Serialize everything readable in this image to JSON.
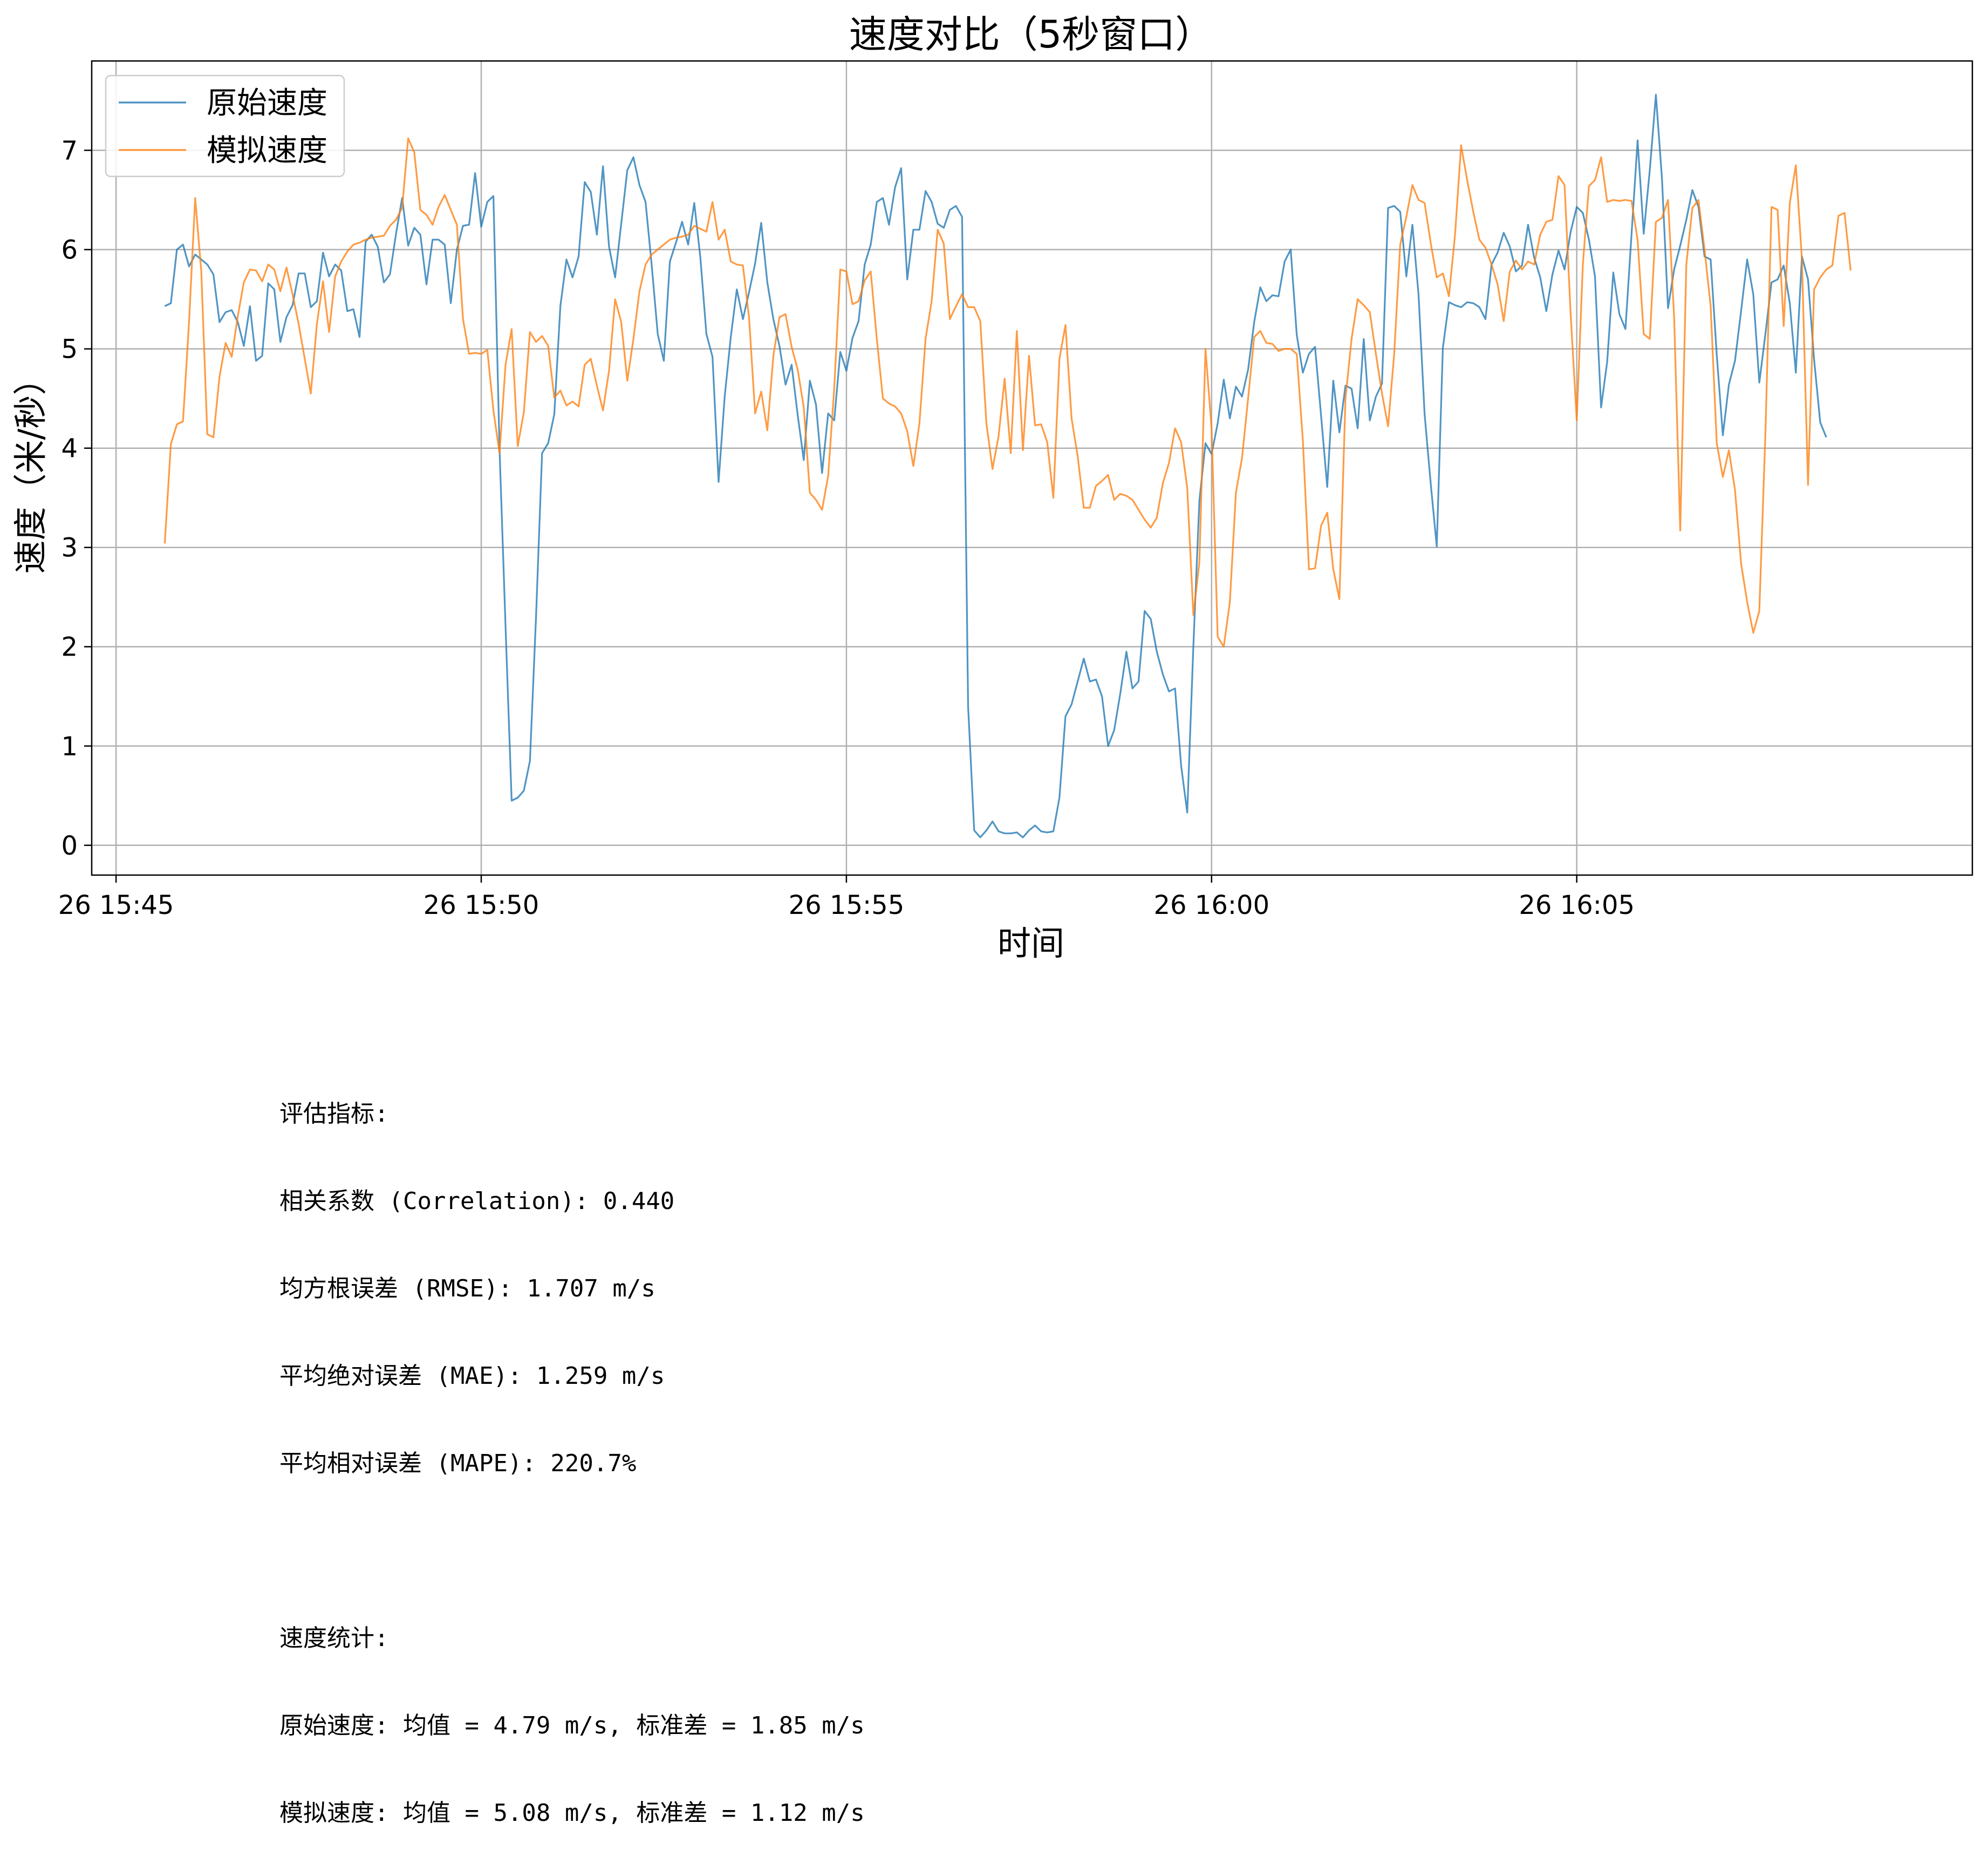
{
  "chart_data": {
    "type": "line",
    "title": "速度对比（5秒窗口）",
    "xlabel": "时间",
    "ylabel": "速度（米/秒）",
    "x_axis": {
      "scale": "time",
      "start": "26 15:45:40",
      "step_seconds": 5,
      "ticks": [
        "26 15:45",
        "26 15:50",
        "26 15:55",
        "26 16:00",
        "26 16:05"
      ],
      "xlim": [
        "26 15:44:40",
        "26 16:10:25"
      ]
    },
    "y_axis": {
      "ylim": [
        -0.3,
        7.9
      ],
      "ticks": [
        0,
        1,
        2,
        3,
        4,
        5,
        6,
        7
      ]
    },
    "grid": true,
    "legend": "top-left",
    "colors": {
      "原始速度": "#1f77b4",
      "模拟速度": "#ff7f0e"
    },
    "series": [
      {
        "name": "原始速度",
        "values": [
          5.43,
          5.46,
          6.0,
          6.05,
          5.83,
          5.95,
          5.9,
          5.85,
          5.75,
          5.27,
          5.37,
          5.39,
          5.27,
          5.03,
          5.43,
          4.88,
          4.93,
          5.66,
          5.6,
          5.07,
          5.32,
          5.44,
          5.76,
          5.76,
          5.42,
          5.48,
          5.97,
          5.73,
          5.85,
          5.79,
          5.38,
          5.4,
          5.12,
          6.08,
          6.15,
          6.03,
          5.67,
          5.75,
          6.16,
          6.52,
          6.04,
          6.22,
          6.15,
          5.65,
          6.1,
          6.1,
          6.05,
          5.46,
          6.0,
          6.24,
          6.25,
          6.77,
          6.23,
          6.48,
          6.54,
          4.0,
          2.2,
          0.45,
          0.48,
          0.55,
          0.85,
          2.3,
          3.95,
          4.05,
          4.34,
          5.43,
          5.9,
          5.72,
          5.93,
          6.68,
          6.58,
          6.15,
          6.84,
          6.03,
          5.72,
          6.26,
          6.8,
          6.93,
          6.65,
          6.48,
          5.85,
          5.15,
          4.88,
          5.88,
          6.07,
          6.28,
          6.05,
          6.47,
          5.92,
          5.15,
          4.92,
          3.66,
          4.52,
          5.12,
          5.6,
          5.3,
          5.57,
          5.86,
          6.27,
          5.67,
          5.3,
          5.03,
          4.64,
          4.84,
          4.33,
          3.88,
          4.68,
          4.44,
          3.75,
          4.35,
          4.28,
          4.97,
          4.78,
          5.11,
          5.28,
          5.85,
          6.05,
          6.48,
          6.52,
          6.25,
          6.63,
          6.82,
          5.7,
          6.2,
          6.2,
          6.59,
          6.48,
          6.26,
          6.22,
          6.4,
          6.44,
          6.33,
          1.4,
          0.15,
          0.08,
          0.15,
          0.24,
          0.14,
          0.12,
          0.12,
          0.13,
          0.08,
          0.15,
          0.2,
          0.14,
          0.13,
          0.14,
          0.48,
          1.3,
          1.42,
          1.65,
          1.88,
          1.65,
          1.67,
          1.5,
          1.0,
          1.16,
          1.53,
          1.95,
          1.58,
          1.65,
          2.36,
          2.28,
          1.95,
          1.72,
          1.55,
          1.58,
          0.8,
          0.33,
          2.0,
          3.47,
          4.05,
          3.94,
          4.25,
          4.69,
          4.3,
          4.62,
          4.52,
          4.79,
          5.27,
          5.62,
          5.48,
          5.54,
          5.53,
          5.88,
          6.0,
          5.14,
          4.76,
          4.95,
          5.02,
          4.32,
          3.61,
          4.68,
          4.16,
          4.63,
          4.6,
          4.2,
          5.1,
          4.28,
          4.52,
          4.65,
          6.42,
          6.44,
          6.38,
          5.73,
          6.25,
          5.55,
          4.34,
          3.65,
          3.01,
          5.01,
          5.47,
          5.44,
          5.42,
          5.47,
          5.46,
          5.42,
          5.3,
          5.85,
          5.97,
          6.17,
          6.03,
          5.78,
          5.84,
          6.25,
          5.92,
          5.72,
          5.38,
          5.75,
          5.99,
          5.8,
          6.18,
          6.43,
          6.37,
          6.1,
          5.73,
          4.41,
          4.87,
          5.77,
          5.35,
          5.2,
          6.15,
          7.1,
          6.16,
          6.8,
          7.56,
          6.72,
          5.41,
          5.8,
          6.04,
          6.3,
          6.6,
          6.43,
          5.93,
          5.9,
          4.94,
          4.13,
          4.64,
          4.88,
          5.38,
          5.9,
          5.55,
          4.66,
          5.15,
          5.67,
          5.7,
          5.84,
          5.46,
          4.76,
          5.93,
          5.7,
          4.89,
          4.26,
          4.11
        ]
      },
      {
        "name": "模拟速度",
        "values": [
          3.04,
          4.04,
          4.24,
          4.27,
          5.28,
          6.52,
          5.78,
          4.14,
          4.11,
          4.72,
          5.06,
          4.92,
          5.33,
          5.67,
          5.8,
          5.79,
          5.68,
          5.85,
          5.8,
          5.58,
          5.82,
          5.55,
          5.25,
          4.9,
          4.55,
          5.25,
          5.68,
          5.17,
          5.73,
          5.88,
          5.98,
          6.05,
          6.07,
          6.1,
          6.12,
          6.13,
          6.14,
          6.24,
          6.3,
          6.42,
          7.12,
          6.98,
          6.4,
          6.35,
          6.25,
          6.43,
          6.55,
          6.4,
          6.25,
          5.3,
          4.95,
          4.96,
          4.95,
          4.99,
          4.38,
          3.95,
          4.84,
          5.2,
          4.02,
          4.36,
          5.17,
          5.07,
          5.13,
          5.03,
          4.51,
          4.58,
          4.43,
          4.47,
          4.42,
          4.84,
          4.9,
          4.63,
          4.38,
          4.78,
          5.5,
          5.27,
          4.68,
          5.1,
          5.58,
          5.85,
          5.95,
          6.0,
          6.05,
          6.1,
          6.12,
          6.13,
          6.15,
          6.24,
          6.21,
          6.18,
          6.48,
          6.1,
          6.2,
          5.88,
          5.85,
          5.84,
          5.32,
          4.35,
          4.57,
          4.18,
          4.93,
          5.32,
          5.35,
          5.02,
          4.79,
          4.41,
          3.55,
          3.48,
          3.38,
          3.72,
          4.6,
          5.8,
          5.78,
          5.45,
          5.48,
          5.69,
          5.78,
          5.1,
          4.5,
          4.45,
          4.42,
          4.35,
          4.17,
          3.82,
          4.25,
          5.1,
          5.48,
          6.2,
          6.06,
          5.3,
          5.43,
          5.55,
          5.42,
          5.42,
          5.28,
          4.25,
          3.79,
          4.12,
          4.7,
          3.95,
          5.18,
          3.98,
          4.93,
          4.23,
          4.24,
          4.06,
          3.5,
          4.9,
          5.24,
          4.3,
          3.92,
          3.4,
          3.4,
          3.62,
          3.67,
          3.73,
          3.48,
          3.54,
          3.52,
          3.48,
          3.38,
          3.28,
          3.2,
          3.3,
          3.65,
          3.85,
          4.2,
          4.06,
          3.6,
          2.32,
          2.85,
          5.0,
          4.2,
          2.1,
          2.0,
          2.45,
          3.55,
          3.9,
          4.5,
          5.12,
          5.18,
          5.06,
          5.05,
          4.98,
          5.0,
          5.0,
          4.95,
          4.08,
          2.78,
          2.79,
          3.22,
          3.35,
          2.78,
          2.48,
          4.5,
          5.1,
          5.5,
          5.44,
          5.37,
          4.95,
          4.55,
          4.22,
          4.95,
          6.05,
          6.33,
          6.65,
          6.5,
          6.47,
          6.07,
          5.72,
          5.76,
          5.53,
          6.15,
          7.05,
          6.7,
          6.38,
          6.1,
          6.02,
          5.85,
          5.65,
          5.28,
          5.78,
          5.89,
          5.8,
          5.88,
          5.85,
          6.15,
          6.28,
          6.3,
          6.74,
          6.65,
          5.35,
          4.28,
          5.85,
          6.64,
          6.7,
          6.93,
          6.48,
          6.5,
          6.49,
          6.5,
          6.49,
          6.1,
          5.15,
          5.1,
          6.28,
          6.32,
          6.5,
          5.32,
          3.17,
          5.85,
          6.42,
          6.5,
          6.0,
          5.43,
          4.05,
          3.71,
          3.98,
          3.58,
          2.84,
          2.45,
          2.14,
          2.36,
          4.15,
          6.43,
          6.4,
          5.23,
          6.47,
          6.85,
          5.9,
          3.63,
          5.6,
          5.72,
          5.8,
          5.84,
          6.34,
          6.37,
          5.79
        ]
      }
    ],
    "annotations": {
      "metrics_lines": [
        "评估指标:",
        "相关系数 (Correlation): 0.440",
        "均方根误差 (RMSE): 1.707 m/s",
        "平均绝对误差 (MAE): 1.259 m/s",
        "平均相对误差 (MAPE): 220.7%",
        "",
        "速度统计:",
        "原始速度: 均值 = 4.79 m/s, 标准差 = 1.85 m/s",
        "模拟速度: 均值 = 5.08 m/s, 标准差 = 1.12 m/s"
      ]
    }
  }
}
